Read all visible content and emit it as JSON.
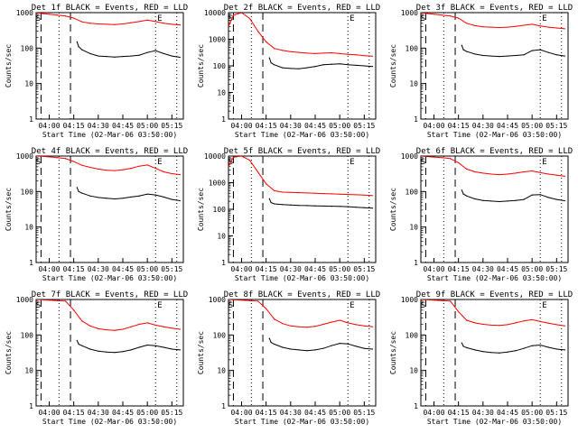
{
  "chart_data": [
    {
      "type": "line",
      "title": "Det 1f BLACK = Events, RED = LLD",
      "xlabel": "Start Time (02-Mar-06 03:50:00)",
      "ylabel": "Counts/sec",
      "ylim": [
        1,
        1000
      ],
      "y_scale": "log",
      "xlim": [
        "03:52",
        "05:22"
      ],
      "x_ticks": [
        "04:00",
        "04:15",
        "04:30",
        "04:45",
        "05:00",
        "05:15"
      ],
      "y_ticks": [
        "1",
        "10",
        "100",
        "1000"
      ],
      "markers": [
        "S",
        "E"
      ],
      "series": [
        {
          "color": "#000000",
          "x": [
            "04:17",
            "04:18",
            "04:20",
            "04:25",
            "04:30",
            "04:35",
            "04:40",
            "04:45",
            "04:50",
            "04:55",
            "05:00",
            "05:05",
            "05:10",
            "05:15",
            "05:20"
          ],
          "y": [
            150,
            110,
            90,
            70,
            60,
            58,
            56,
            58,
            60,
            63,
            75,
            85,
            70,
            60,
            55
          ]
        },
        {
          "color": "#ff0000",
          "x": [
            "03:52",
            "03:55",
            "04:00",
            "04:05",
            "04:10",
            "04:15",
            "04:20",
            "04:25",
            "04:30",
            "04:35",
            "04:40",
            "04:45",
            "04:50",
            "04:55",
            "05:00",
            "05:05",
            "05:10",
            "05:15",
            "05:20"
          ],
          "y": [
            1000,
            950,
            900,
            850,
            800,
            700,
            550,
            500,
            480,
            470,
            460,
            480,
            520,
            560,
            620,
            560,
            500,
            470,
            450
          ]
        }
      ]
    },
    {
      "type": "line",
      "title": "Det 2f BLACK = Events, RED = LLD",
      "xlabel": "Start Time (02-Mar-06 03:50:00)",
      "ylabel": "Counts/sec",
      "ylim": [
        1,
        10000
      ],
      "y_scale": "log",
      "xlim": [
        "03:52",
        "05:22"
      ],
      "x_ticks": [
        "04:00",
        "04:15",
        "04:30",
        "04:45",
        "05:00",
        "05:15"
      ],
      "y_ticks": [
        "1",
        "10",
        "100",
        "1000",
        "10000"
      ],
      "markers": [
        "S",
        "E"
      ],
      "series": [
        {
          "color": "#000000",
          "x": [
            "04:17",
            "04:18",
            "04:20",
            "04:25",
            "04:30",
            "04:35",
            "04:40",
            "04:45",
            "04:50",
            "04:55",
            "05:00",
            "05:05",
            "05:10",
            "05:15",
            "05:20"
          ],
          "y": [
            200,
            130,
            110,
            85,
            80,
            78,
            85,
            95,
            110,
            115,
            120,
            110,
            105,
            100,
            95
          ]
        },
        {
          "color": "#ff0000",
          "x": [
            "03:52",
            "03:55",
            "04:00",
            "04:05",
            "04:10",
            "04:15",
            "04:20",
            "04:25",
            "04:30",
            "04:35",
            "04:40",
            "04:45",
            "04:50",
            "04:55",
            "05:00",
            "05:05",
            "05:10",
            "05:15",
            "05:20"
          ],
          "y": [
            3000,
            8000,
            10000,
            6000,
            2000,
            800,
            450,
            380,
            340,
            320,
            300,
            290,
            300,
            310,
            290,
            270,
            260,
            240,
            230
          ]
        }
      ]
    },
    {
      "type": "line",
      "title": "Det 3f BLACK = Events, RED = LLD",
      "xlabel": "Start Time (02-Mar-06 03:50:00)",
      "ylabel": "Counts/sec",
      "ylim": [
        1,
        1000
      ],
      "y_scale": "log",
      "xlim": [
        "03:52",
        "05:22"
      ],
      "x_ticks": [
        "04:00",
        "04:15",
        "04:30",
        "04:45",
        "05:00",
        "05:15"
      ],
      "y_ticks": [
        "1",
        "10",
        "100",
        "1000"
      ],
      "markers": [
        "S",
        "E"
      ],
      "series": [
        {
          "color": "#000000",
          "x": [
            "04:17",
            "04:18",
            "04:20",
            "04:25",
            "04:30",
            "04:35",
            "04:40",
            "04:45",
            "04:50",
            "04:55",
            "05:00",
            "05:05",
            "05:10",
            "05:15",
            "05:20"
          ],
          "y": [
            120,
            90,
            80,
            68,
            62,
            60,
            58,
            60,
            62,
            65,
            85,
            90,
            75,
            65,
            60
          ]
        },
        {
          "color": "#ff0000",
          "x": [
            "03:52",
            "03:55",
            "04:00",
            "04:05",
            "04:10",
            "04:15",
            "04:20",
            "04:25",
            "04:30",
            "04:35",
            "04:40",
            "04:45",
            "04:50",
            "04:55",
            "05:00",
            "05:05",
            "05:10",
            "05:15",
            "05:20"
          ],
          "y": [
            1000,
            950,
            900,
            850,
            800,
            700,
            500,
            430,
            400,
            390,
            380,
            390,
            410,
            440,
            470,
            420,
            390,
            370,
            350
          ]
        }
      ]
    },
    {
      "type": "line",
      "title": "Det 4f BLACK = Events, RED = LLD",
      "xlabel": "Start Time (02-Mar-06 03:50:00)",
      "ylabel": "Counts/sec",
      "ylim": [
        1,
        1000
      ],
      "y_scale": "log",
      "xlim": [
        "03:52",
        "05:22"
      ],
      "x_ticks": [
        "04:00",
        "04:15",
        "04:30",
        "04:45",
        "05:00",
        "05:15"
      ],
      "y_ticks": [
        "1",
        "10",
        "100",
        "1000"
      ],
      "markers": [
        "S",
        "E"
      ],
      "series": [
        {
          "color": "#000000",
          "x": [
            "04:17",
            "04:18",
            "04:20",
            "04:25",
            "04:30",
            "04:35",
            "04:40",
            "04:45",
            "04:50",
            "04:55",
            "05:00",
            "05:05",
            "05:10",
            "05:15",
            "05:20"
          ],
          "y": [
            130,
            100,
            90,
            75,
            68,
            65,
            62,
            65,
            70,
            75,
            85,
            80,
            70,
            60,
            55
          ]
        },
        {
          "color": "#ff0000",
          "x": [
            "03:52",
            "03:55",
            "04:00",
            "04:05",
            "04:10",
            "04:15",
            "04:20",
            "04:25",
            "04:30",
            "04:35",
            "04:40",
            "04:45",
            "04:50",
            "04:55",
            "05:00",
            "05:05",
            "05:10",
            "05:15",
            "05:20"
          ],
          "y": [
            1000,
            980,
            950,
            900,
            850,
            700,
            550,
            480,
            430,
            400,
            390,
            410,
            450,
            520,
            560,
            450,
            360,
            320,
            300
          ]
        }
      ]
    },
    {
      "type": "line",
      "title": "Det 5f BLACK = Events, RED = LLD",
      "xlabel": "Start Time (02-Mar-06 03:50:00)",
      "ylabel": "Counts/sec",
      "ylim": [
        1,
        10000
      ],
      "y_scale": "log",
      "xlim": [
        "03:52",
        "05:22"
      ],
      "x_ticks": [
        "04:00",
        "04:15",
        "04:30",
        "04:45",
        "05:00",
        "05:15"
      ],
      "y_ticks": [
        "1",
        "10",
        "100",
        "1000",
        "10000"
      ],
      "markers": [
        "S",
        "E"
      ],
      "series": [
        {
          "color": "#000000",
          "x": [
            "04:17",
            "04:18",
            "04:20",
            "04:25",
            "04:30",
            "04:35",
            "04:40",
            "04:45",
            "04:50",
            "04:55",
            "05:00",
            "05:05",
            "05:10",
            "05:15",
            "05:20"
          ],
          "y": [
            250,
            180,
            160,
            150,
            145,
            140,
            138,
            135,
            132,
            130,
            128,
            125,
            120,
            115,
            110
          ]
        },
        {
          "color": "#ff0000",
          "x": [
            "03:52",
            "03:55",
            "04:00",
            "04:05",
            "04:10",
            "04:15",
            "04:20",
            "04:25",
            "04:30",
            "04:35",
            "04:40",
            "04:45",
            "04:50",
            "04:55",
            "05:00",
            "05:05",
            "05:10",
            "05:15",
            "05:20"
          ],
          "y": [
            4000,
            9000,
            10000,
            7000,
            2500,
            900,
            500,
            440,
            430,
            420,
            410,
            400,
            390,
            380,
            370,
            360,
            350,
            340,
            330
          ]
        }
      ]
    },
    {
      "type": "line",
      "title": "Det 6f BLACK = Events, RED = LLD",
      "xlabel": "Start Time (02-Mar-06 03:50:00)",
      "ylabel": "Counts/sec",
      "ylim": [
        1,
        1000
      ],
      "y_scale": "log",
      "xlim": [
        "03:52",
        "05:22"
      ],
      "x_ticks": [
        "04:00",
        "04:15",
        "04:30",
        "04:45",
        "05:00",
        "05:15"
      ],
      "y_ticks": [
        "1",
        "10",
        "100",
        "1000"
      ],
      "markers": [
        "S",
        "E"
      ],
      "series": [
        {
          "color": "#000000",
          "x": [
            "04:17",
            "04:18",
            "04:20",
            "04:25",
            "04:30",
            "04:35",
            "04:40",
            "04:45",
            "04:50",
            "04:55",
            "05:00",
            "05:05",
            "05:10",
            "05:15",
            "05:20"
          ],
          "y": [
            110,
            85,
            75,
            62,
            56,
            54,
            52,
            54,
            56,
            60,
            80,
            82,
            68,
            60,
            55
          ]
        },
        {
          "color": "#ff0000",
          "x": [
            "03:52",
            "03:55",
            "04:00",
            "04:05",
            "04:10",
            "04:15",
            "04:20",
            "04:25",
            "04:30",
            "04:35",
            "04:40",
            "04:45",
            "04:50",
            "04:55",
            "05:00",
            "05:05",
            "05:10",
            "05:15",
            "05:20"
          ],
          "y": [
            1000,
            970,
            940,
            900,
            850,
            650,
            430,
            360,
            330,
            310,
            300,
            310,
            330,
            360,
            380,
            340,
            310,
            290,
            270
          ]
        }
      ]
    },
    {
      "type": "line",
      "title": "Det 7f BLACK = Events, RED = LLD",
      "xlabel": "Start Time (02-Mar-06 03:50:00)",
      "ylabel": "Counts/sec",
      "ylim": [
        1,
        1000
      ],
      "y_scale": "log",
      "xlim": [
        "03:52",
        "05:22"
      ],
      "x_ticks": [
        "04:00",
        "04:15",
        "04:30",
        "04:45",
        "05:00",
        "05:15"
      ],
      "y_ticks": [
        "1",
        "10",
        "100",
        "1000"
      ],
      "markers": [
        "S",
        "E"
      ],
      "series": [
        {
          "color": "#000000",
          "x": [
            "04:17",
            "04:18",
            "04:20",
            "04:25",
            "04:30",
            "04:35",
            "04:40",
            "04:45",
            "04:50",
            "04:55",
            "05:00",
            "05:05",
            "05:10",
            "05:15",
            "05:20"
          ],
          "y": [
            70,
            55,
            50,
            40,
            35,
            33,
            32,
            34,
            38,
            45,
            52,
            50,
            45,
            40,
            38
          ]
        },
        {
          "color": "#ff0000",
          "x": [
            "03:52",
            "03:55",
            "04:00",
            "04:05",
            "04:10",
            "04:15",
            "04:20",
            "04:25",
            "04:30",
            "04:35",
            "04:40",
            "04:45",
            "04:50",
            "04:55",
            "05:00",
            "05:05",
            "05:10",
            "05:15",
            "05:20"
          ],
          "y": [
            1000,
            980,
            960,
            930,
            900,
            500,
            250,
            180,
            150,
            140,
            135,
            145,
            170,
            200,
            220,
            190,
            170,
            155,
            145
          ]
        }
      ]
    },
    {
      "type": "line",
      "title": "Det 8f BLACK = Events, RED = LLD",
      "xlabel": "Start Time (02-Mar-06 03:50:00)",
      "ylabel": "Counts/sec",
      "ylim": [
        1,
        1000
      ],
      "y_scale": "log",
      "xlim": [
        "03:52",
        "05:22"
      ],
      "x_ticks": [
        "04:00",
        "04:15",
        "04:30",
        "04:45",
        "05:00",
        "05:15"
      ],
      "y_ticks": [
        "1",
        "10",
        "100",
        "1000"
      ],
      "markers": [
        "S",
        "E"
      ],
      "series": [
        {
          "color": "#000000",
          "x": [
            "04:17",
            "04:18",
            "04:20",
            "04:25",
            "04:30",
            "04:35",
            "04:40",
            "04:45",
            "04:50",
            "04:55",
            "05:00",
            "05:05",
            "05:10",
            "05:15",
            "05:20"
          ],
          "y": [
            80,
            62,
            55,
            45,
            40,
            38,
            36,
            38,
            42,
            50,
            58,
            56,
            48,
            42,
            40
          ]
        },
        {
          "color": "#ff0000",
          "x": [
            "03:52",
            "03:55",
            "04:00",
            "04:05",
            "04:10",
            "04:15",
            "04:20",
            "04:25",
            "04:30",
            "04:35",
            "04:40",
            "04:45",
            "04:50",
            "04:55",
            "05:00",
            "05:05",
            "05:10",
            "05:15",
            "05:20"
          ],
          "y": [
            1000,
            980,
            960,
            930,
            900,
            550,
            280,
            210,
            180,
            170,
            165,
            175,
            200,
            230,
            260,
            220,
            195,
            180,
            170
          ]
        }
      ]
    },
    {
      "type": "line",
      "title": "Det 9f BLACK = Events, RED = LLD",
      "xlabel": "Start Time (02-Mar-06 03:50:00)",
      "ylabel": "Counts/sec",
      "ylim": [
        1,
        1000
      ],
      "y_scale": "log",
      "xlim": [
        "03:52",
        "05:22"
      ],
      "x_ticks": [
        "04:00",
        "04:15",
        "04:30",
        "04:45",
        "05:00",
        "05:15"
      ],
      "y_ticks": [
        "1",
        "10",
        "100",
        "1000"
      ],
      "markers": [
        "S",
        "E"
      ],
      "series": [
        {
          "color": "#000000",
          "x": [
            "04:17",
            "04:18",
            "04:20",
            "04:25",
            "04:30",
            "04:35",
            "04:40",
            "04:45",
            "04:50",
            "04:55",
            "05:00",
            "05:05",
            "05:10",
            "05:15",
            "05:20"
          ],
          "y": [
            60,
            48,
            44,
            38,
            34,
            32,
            31,
            33,
            36,
            42,
            50,
            52,
            45,
            40,
            38
          ]
        },
        {
          "color": "#ff0000",
          "x": [
            "03:52",
            "03:55",
            "04:00",
            "04:05",
            "04:10",
            "04:15",
            "04:20",
            "04:25",
            "04:30",
            "04:35",
            "04:40",
            "04:45",
            "04:50",
            "04:55",
            "05:00",
            "05:05",
            "05:10",
            "05:15",
            "05:20"
          ],
          "y": [
            1000,
            980,
            960,
            930,
            900,
            450,
            260,
            220,
            200,
            190,
            185,
            195,
            220,
            250,
            270,
            240,
            215,
            195,
            180
          ]
        }
      ]
    }
  ]
}
